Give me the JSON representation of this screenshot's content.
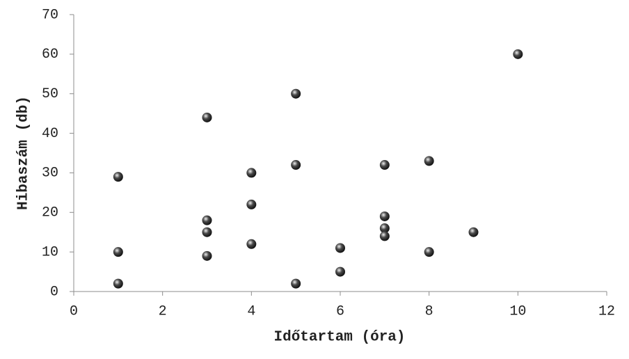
{
  "chart_data": {
    "type": "scatter",
    "x_label": "Időtartam (óra)",
    "y_label": "Hibaszám (db)",
    "x": [
      1,
      1,
      1,
      3,
      3,
      3,
      3,
      4,
      4,
      4,
      5,
      5,
      5,
      6,
      6,
      7,
      7,
      7,
      7,
      8,
      8,
      9,
      10
    ],
    "values": [
      29,
      10,
      2,
      44,
      18,
      15,
      9,
      30,
      22,
      12,
      50,
      32,
      2,
      11,
      5,
      32,
      19,
      16,
      14,
      33,
      10,
      15,
      60
    ],
    "color": "#4a4a4a",
    "xlim": [
      0,
      12
    ],
    "xticks": [
      0,
      2,
      4,
      6,
      8,
      10,
      12
    ],
    "ylim": [
      0,
      70
    ],
    "yticks": [
      0,
      10,
      20,
      30,
      40,
      50,
      60,
      70
    ],
    "grid": false
  }
}
